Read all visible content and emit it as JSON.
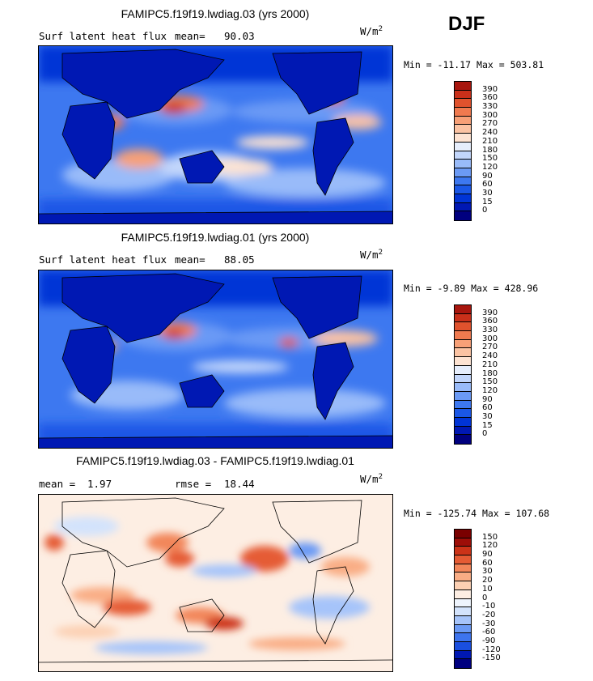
{
  "season": "DJF",
  "colors": {
    "abs_scale": [
      "#00007f",
      "#0018b3",
      "#0034d6",
      "#1a57e6",
      "#3d78f0",
      "#6b9af5",
      "#99bbf9",
      "#c2d6fb",
      "#e6eefc",
      "#fde3d2",
      "#fbc3a3",
      "#f7a077",
      "#f07a4f",
      "#e0522d",
      "#c9301a",
      "#a8160e",
      "#7a0000"
    ],
    "diff_scale": [
      "#00007f",
      "#0018b3",
      "#1a4fe0",
      "#3d74ee",
      "#6b9af5",
      "#a6c4fa",
      "#d3e3fc",
      "#eef4fd",
      "#fdeee3",
      "#fcd0b3",
      "#f9ad85",
      "#f2865a",
      "#e55b34",
      "#cc3318",
      "#9e0e08",
      "#7a0000"
    ],
    "land_line": "#000000"
  },
  "chart_data": [
    {
      "type": "heatmap",
      "title": "FAMIPC5.f19f19.lwdiag.03 (yrs 2000)",
      "variable": "Surf latent heat flux",
      "stat_label": "mean=",
      "stat_value": "90.03",
      "units": "W/m",
      "units_sup": "2",
      "min_label": "Min = -11.17",
      "max_label": "Max = 503.81",
      "colorbar_levels": [
        "390",
        "360",
        "330",
        "300",
        "270",
        "240",
        "210",
        "180",
        "150",
        "120",
        "90",
        "60",
        "30",
        "15",
        "0"
      ]
    },
    {
      "type": "heatmap",
      "title": "FAMIPC5.f19f19.lwdiag.01 (yrs 2000)",
      "variable": "Surf latent heat flux",
      "stat_label": "mean=",
      "stat_value": "88.05",
      "units": "W/m",
      "units_sup": "2",
      "min_label": "Min =  -9.89",
      "max_label": "Max = 428.96",
      "colorbar_levels": [
        "390",
        "360",
        "330",
        "300",
        "270",
        "240",
        "210",
        "180",
        "150",
        "120",
        "90",
        "60",
        "30",
        "15",
        "0"
      ]
    },
    {
      "type": "heatmap",
      "title": "FAMIPC5.f19f19.lwdiag.03 - FAMIPC5.f19f19.lwdiag.01",
      "variable": "mean =",
      "stat_value": "1.97",
      "rmse_label": "rmse =",
      "rmse_value": "18.44",
      "units": "W/m",
      "units_sup": "2",
      "min_label": "Min = -125.74",
      "max_label": "Max = 107.68",
      "colorbar_levels": [
        "150",
        "120",
        "90",
        "60",
        "30",
        "20",
        "10",
        "0",
        "-10",
        "-20",
        "-30",
        "-60",
        "-90",
        "-120",
        "-150"
      ]
    }
  ]
}
